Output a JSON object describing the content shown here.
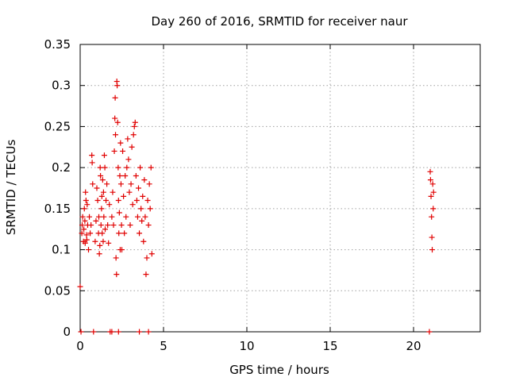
{
  "chart_data": {
    "type": "scatter",
    "title": "Day 260 of 2016, SRMTID for receiver naur",
    "xlabel": "GPS time / hours",
    "ylabel": "SRMTID / TECUs",
    "xlim": [
      0,
      24
    ],
    "ylim": [
      0,
      0.35
    ],
    "xticks": [
      0,
      5,
      10,
      15,
      20
    ],
    "yticks": [
      0,
      0.05,
      0.1,
      0.15,
      0.2,
      0.25,
      0.3,
      0.35
    ],
    "grid": true,
    "marker": "plus",
    "point_color": "#e00000",
    "series": [
      {
        "points": [
          [
            0.0,
            0.055
          ],
          [
            0.05,
            0.0
          ],
          [
            0.1,
            0.12
          ],
          [
            0.12,
            0.13
          ],
          [
            0.15,
            0.14
          ],
          [
            0.2,
            0.11
          ],
          [
            0.22,
            0.125
          ],
          [
            0.25,
            0.15
          ],
          [
            0.28,
            0.135
          ],
          [
            0.3,
            0.108
          ],
          [
            0.32,
            0.17
          ],
          [
            0.35,
            0.16
          ],
          [
            0.38,
            0.118
          ],
          [
            0.4,
            0.112
          ],
          [
            0.42,
            0.155
          ],
          [
            0.45,
            0.13
          ],
          [
            0.5,
            0.1
          ],
          [
            0.55,
            0.14
          ],
          [
            0.6,
            0.12
          ],
          [
            0.65,
            0.13
          ],
          [
            0.7,
            0.215
          ],
          [
            0.72,
            0.206
          ],
          [
            0.75,
            0.18
          ],
          [
            0.8,
            0.0
          ],
          [
            0.9,
            0.11
          ],
          [
            0.95,
            0.135
          ],
          [
            1.0,
            0.175
          ],
          [
            1.05,
            0.16
          ],
          [
            1.1,
            0.12
          ],
          [
            1.12,
            0.14
          ],
          [
            1.15,
            0.095
          ],
          [
            1.18,
            0.105
          ],
          [
            1.2,
            0.2
          ],
          [
            1.22,
            0.19
          ],
          [
            1.25,
            0.13
          ],
          [
            1.28,
            0.15
          ],
          [
            1.3,
            0.165
          ],
          [
            1.32,
            0.12
          ],
          [
            1.35,
            0.185
          ],
          [
            1.38,
            0.11
          ],
          [
            1.4,
            0.17
          ],
          [
            1.42,
            0.14
          ],
          [
            1.45,
            0.215
          ],
          [
            1.48,
            0.2
          ],
          [
            1.5,
            0.125
          ],
          [
            1.55,
            0.16
          ],
          [
            1.6,
            0.18
          ],
          [
            1.65,
            0.13
          ],
          [
            1.7,
            0.108
          ],
          [
            1.75,
            0.155
          ],
          [
            1.8,
            0.0
          ],
          [
            1.9,
            0.14
          ],
          [
            1.95,
            0.17
          ],
          [
            2.0,
            0.13
          ],
          [
            2.05,
            0.22
          ],
          [
            2.08,
            0.26
          ],
          [
            2.1,
            0.285
          ],
          [
            2.12,
            0.24
          ],
          [
            2.15,
            0.09
          ],
          [
            2.18,
            0.07
          ],
          [
            2.2,
            0.305
          ],
          [
            2.22,
            0.3
          ],
          [
            2.25,
            0.255
          ],
          [
            2.28,
            0.2
          ],
          [
            2.3,
            0.16
          ],
          [
            2.32,
            0.12
          ],
          [
            2.35,
            0.145
          ],
          [
            2.38,
            0.19
          ],
          [
            2.4,
            0.1
          ],
          [
            2.42,
            0.23
          ],
          [
            2.45,
            0.18
          ],
          [
            2.48,
            0.13
          ],
          [
            2.5,
            0.1
          ],
          [
            2.55,
            0.22
          ],
          [
            2.6,
            0.165
          ],
          [
            2.65,
            0.12
          ],
          [
            2.7,
            0.19
          ],
          [
            2.75,
            0.14
          ],
          [
            2.8,
            0.2
          ],
          [
            2.85,
            0.235
          ],
          [
            2.9,
            0.21
          ],
          [
            2.95,
            0.17
          ],
          [
            3.0,
            0.13
          ],
          [
            3.05,
            0.18
          ],
          [
            3.1,
            0.225
          ],
          [
            3.15,
            0.155
          ],
          [
            3.2,
            0.24
          ],
          [
            3.25,
            0.25
          ],
          [
            3.3,
            0.255
          ],
          [
            3.35,
            0.19
          ],
          [
            3.4,
            0.16
          ],
          [
            3.45,
            0.14
          ],
          [
            3.5,
            0.175
          ],
          [
            3.55,
            0.12
          ],
          [
            3.6,
            0.2
          ],
          [
            3.65,
            0.15
          ],
          [
            3.7,
            0.135
          ],
          [
            3.75,
            0.165
          ],
          [
            3.8,
            0.11
          ],
          [
            3.85,
            0.185
          ],
          [
            3.9,
            0.14
          ],
          [
            3.95,
            0.07
          ],
          [
            4.0,
            0.09
          ],
          [
            4.05,
            0.16
          ],
          [
            4.1,
            0.13
          ],
          [
            4.15,
            0.18
          ],
          [
            4.2,
            0.15
          ],
          [
            4.25,
            0.2
          ],
          [
            4.3,
            0.095
          ],
          [
            3.55,
            0.0
          ],
          [
            4.1,
            0.0
          ],
          [
            1.9,
            0.0
          ],
          [
            2.3,
            0.0
          ],
          [
            20.95,
            0.0
          ],
          [
            21.0,
            0.195
          ],
          [
            21.02,
            0.185
          ],
          [
            21.05,
            0.165
          ],
          [
            21.08,
            0.14
          ],
          [
            21.1,
            0.115
          ],
          [
            21.12,
            0.1
          ],
          [
            21.15,
            0.18
          ],
          [
            21.18,
            0.15
          ],
          [
            21.2,
            0.17
          ]
        ]
      }
    ]
  }
}
